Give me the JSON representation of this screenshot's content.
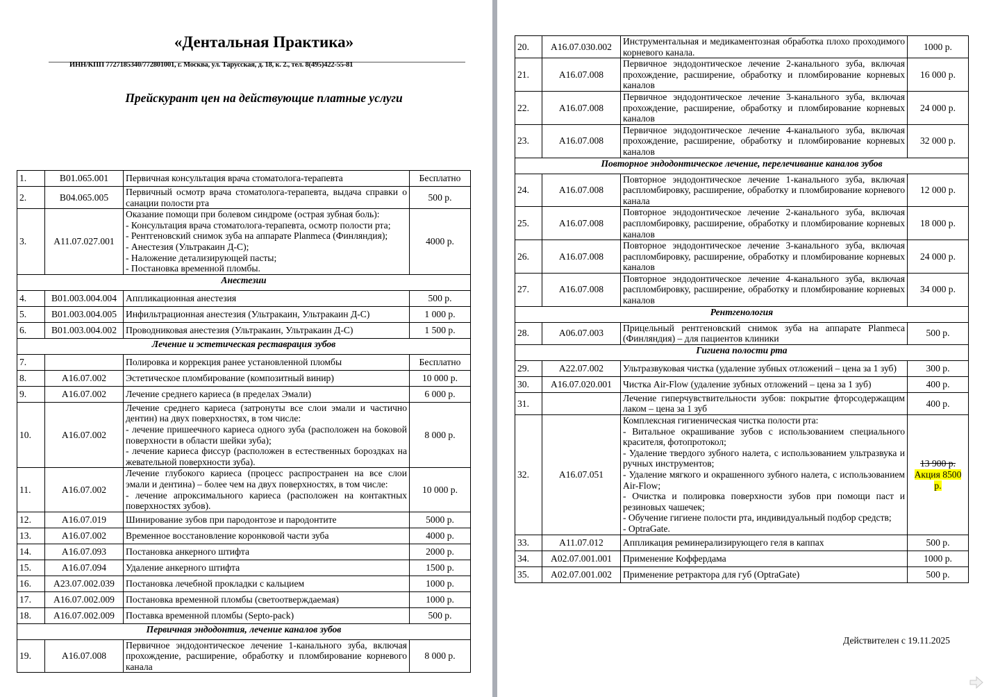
{
  "header": {
    "company": "«Дентальная Практика»",
    "requisites": "ИНН/КПП 7727185340/772801001, г. Москва, ул. Тарусская, д. 18, к. 2., тел. 8(495)422-55-81",
    "subtitle": "Прейскурант цен на действующие платные услуги"
  },
  "left_rows": [
    {
      "num": "1.",
      "code": "B01.065.001",
      "desc": "Первичная консультация врача стоматолога-терапевта",
      "price": "Бесплатно"
    },
    {
      "num": "2.",
      "code": "B04.065.005",
      "desc": "Первичный осмотр врача стоматолога-терапевта, выдача справки о санации полости рта",
      "price": "500 р."
    },
    {
      "num": "3.",
      "code": "A11.07.027.001",
      "desc": [
        "Оказание помощи при болевом синдроме (острая зубная боль):",
        "- Консультация врача стоматолога-терапевта, осмотр полости рта;",
        "- Рентгеновский снимок зуба на аппарате Planmeca (Финляндия);",
        "- Анестезия (Ультракаин Д-С);",
        "- Наложение детализирующей пасты;",
        "- Постановка временной пломбы."
      ],
      "price": "4000 р."
    },
    {
      "section": "Анестезии"
    },
    {
      "num": "4.",
      "code": "B01.003.004.004",
      "desc": "Аппликационная анестезия",
      "price": "500 р."
    },
    {
      "num": "5.",
      "code": "B01.003.004.005",
      "desc": "Инфильтрационная анестезия (Ультракаин, Ультракаин Д-С)",
      "price": "1 000 р."
    },
    {
      "num": "6.",
      "code": "B01.003.004.002",
      "desc": "Проводниковая анестезия (Ультракаин, Ультракаин Д-С)",
      "price": "1 500 р."
    },
    {
      "section": "Лечение и эстетическая реставрация зубов"
    },
    {
      "num": "7.",
      "code": "",
      "desc": "Полировка и коррекция ранее установленной пломбы",
      "price": "Бесплатно"
    },
    {
      "num": "8.",
      "code": "A16.07.002",
      "desc": "Эстетическое пломбирование (композитный винир)",
      "price": "10 000 р."
    },
    {
      "num": "9.",
      "code": "A16.07.002",
      "desc": "Лечение среднего кариеса (в пределах Эмали)",
      "price": "6 000 р."
    },
    {
      "num": "10.",
      "code": "A16.07.002",
      "desc": [
        "Лечение среднего кариеса (затронуты все слои эмали и частично дентин) на двух поверхностях, в том числе:",
        "- лечение пришеечного кариеса одного зуба (расположен на боковой поверхности в области шейки зуба);",
        "- лечение кариеса фиссур (расположен в естественных бороздках на жевательной поверхности зуба)."
      ],
      "price": "8 000 р."
    },
    {
      "num": "11.",
      "code": "A16.07.002",
      "desc": [
        "Лечение глубокого кариеса (процесс распространен на все слои эмали и дентина) – более чем на двух поверхностях, в том числе:",
        "- лечение апроксимального кариеса (расположен на контактных поверхностях зубов)."
      ],
      "price": "10 000 р."
    },
    {
      "num": "12.",
      "code": "A16.07.019",
      "desc": "Шинирование зубов при пародонтозе и пародонтите",
      "price": "5000 р."
    },
    {
      "num": "13.",
      "code": "A16.07.002",
      "desc": "Временное восстановление коронковой части зуба",
      "price": "4000 р."
    },
    {
      "num": "14.",
      "code": "A16.07.093",
      "desc": "Постановка анкерного штифта",
      "price": "2000 р."
    },
    {
      "num": "15.",
      "code": "A16.07.094",
      "desc": "Удаление анкерного штифта",
      "price": "1500 р."
    },
    {
      "num": "16.",
      "code": "A23.07.002.039",
      "desc": "Постановка лечебной прокладки с кальцием",
      "price": "1000 р."
    },
    {
      "num": "17.",
      "code": "A16.07.002.009",
      "desc": "Постановка временной пломбы (светоотверждаемая)",
      "price": "1000 р."
    },
    {
      "num": "18.",
      "code": "A16.07.002.009",
      "desc": "Поставка временной пломбы (Septo-pack)",
      "price": "500 р."
    },
    {
      "section": "Первичная эндодонтия, лечение каналов зубов"
    },
    {
      "num": "19.",
      "code": "A16.07.008",
      "desc": "Первичное эндодонтическое лечение 1-канального зуба, включая прохождение, расширение, обработку и пломбирование корневого канала",
      "price": "8 000 р."
    }
  ],
  "right_rows": [
    {
      "num": "20.",
      "code": "A16.07.030.002",
      "desc": "Инструментальная и медикаментозная обработка плохо проходимого корневого канала.",
      "price": "1000 р."
    },
    {
      "num": "21.",
      "code": "A16.07.008",
      "desc": "Первичное эндодонтическое лечение 2-канального зуба, включая прохождение, расширение, обработку и пломбирование корневых каналов",
      "price": "16 000 р."
    },
    {
      "num": "22.",
      "code": "A16.07.008",
      "desc": "Первичное эндодонтическое лечение 3-канального зуба, включая прохождение, расширение, обработку и пломбирование корневых каналов",
      "price": "24 000 р."
    },
    {
      "num": "23.",
      "code": "A16.07.008",
      "desc": "Первичное эндодонтическое лечение 4-канального зуба, включая прохождение, расширение, обработку и пломбирование корневых каналов",
      "price": "32 000 р."
    },
    {
      "section": "Повторное эндодонтическое лечение, перелечивание каналов зубов"
    },
    {
      "num": "24.",
      "code": "A16.07.008",
      "desc": "Повторное эндодонтическое лечение 1-канального зуба, включая распломбировку, расширение, обработку и пломбирование корневого канала",
      "price": "12 000 р."
    },
    {
      "num": "25.",
      "code": "A16.07.008",
      "desc": "Повторное эндодонтическое лечение 2-канального зуба, включая распломбировку, расширение, обработку и пломбирование корневых каналов",
      "price": "18 000 р."
    },
    {
      "num": "26.",
      "code": "A16.07.008",
      "desc": "Повторное эндодонтическое лечение 3-канального зуба, включая распломбировку, расширение, обработку и пломбирование корневых каналов",
      "price": "24 000 р."
    },
    {
      "num": "27.",
      "code": "A16.07.008",
      "desc": "Повторное эндодонтическое лечение 4-канального зуба, включая распломбировку, расширение, обработку и пломбирование корневых каналов",
      "price": "34 000 р."
    },
    {
      "section": "Рентгенология"
    },
    {
      "num": "28.",
      "code": "A06.07.003",
      "desc": "Прицельный рентгеновский снимок зуба на аппарате Planmeca (Финляндия) – для пациентов клиники",
      "price": "500 р."
    },
    {
      "section": "Гигиена полости рта"
    },
    {
      "num": "29.",
      "code": "A22.07.002",
      "desc": "Ультразвуковая чистка (удаление зубных отложений – цена за 1 зуб)",
      "price": "300 р."
    },
    {
      "num": "30.",
      "code": "A16.07.020.001",
      "desc": "Чистка Air-Flow (удаление зубных отложений – цена за 1 зуб)",
      "price": "400 р."
    },
    {
      "num": "31.",
      "code": "",
      "desc": "Лечение гиперчувствительности зубов: покрытие фторсодержащим лаком – цена за 1 зуб",
      "price": "400 р."
    },
    {
      "num": "32.",
      "code": "A16.07.051",
      "desc": [
        "Комплексная гигиеническая чистка полости рта:",
        "- Витальное окрашивание зубов с использованием специального красителя, фотопротокол;",
        "- Удаление твердого зубного налета, с использованием ультразвука и ручных инструментов;",
        "- Удаление мягкого и окрашенного зубного налета, с использованием Air-Flow;",
        "- Очистка и полировка поверхности зубов при помощи паст и резиновых чашечек;",
        "- Обучение гигиене полости рта, индивидуальный подбор средств;",
        "-   OptraGate."
      ],
      "price_old": "13 900 р.",
      "price_promo": "Акция 8500 р."
    },
    {
      "num": "33.",
      "code": "A11.07.012",
      "desc": "Аппликация реминерализирующего геля в каппах",
      "price": "500 р."
    },
    {
      "num": "34.",
      "code": "A02.07.001.001",
      "desc": "Применение Коффердама",
      "price": "1000 р."
    },
    {
      "num": "35.",
      "code": "A02.07.001.002",
      "desc": "Применение ретрактора для губ (OptraGate)",
      "price": "500 р."
    }
  ],
  "footer": {
    "valid_from": "Действителен с 19.11.2025"
  },
  "colors": {
    "promo_highlight": "#ffff00",
    "gutter": "#a9adb5"
  },
  "icons": {
    "next_page": "arrow-right-icon"
  }
}
